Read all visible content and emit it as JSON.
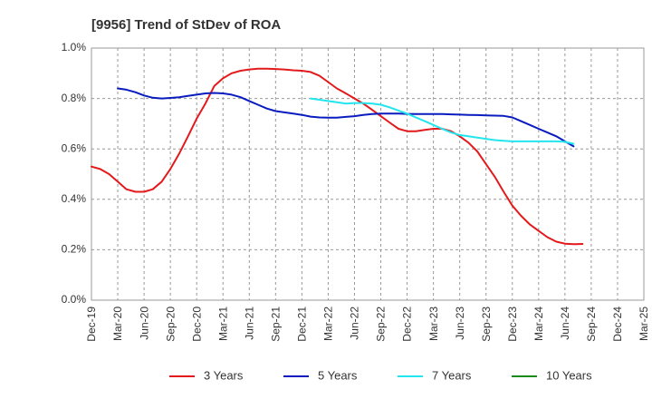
{
  "chart_data": {
    "type": "line",
    "title": "[9956]  Trend of StDev of ROA",
    "xlabel": "",
    "ylabel": "",
    "x_ticks": [
      "Dec-19",
      "Mar-20",
      "Jun-20",
      "Sep-20",
      "Dec-20",
      "Mar-21",
      "Jun-21",
      "Sep-21",
      "Dec-21",
      "Mar-22",
      "Jun-22",
      "Sep-22",
      "Dec-22",
      "Mar-23",
      "Jun-23",
      "Sep-23",
      "Dec-23",
      "Mar-24",
      "Jun-24",
      "Sep-24",
      "Dec-24",
      "Mar-25"
    ],
    "y_ticks": [
      "0.0%",
      "0.2%",
      "0.4%",
      "0.6%",
      "0.8%",
      "1.0%"
    ],
    "ylim": [
      0,
      1.0
    ],
    "y_unit": "%",
    "grid": "dashed",
    "legend_position": "bottom",
    "series": [
      {
        "name": "3 Years",
        "color": "#e31a1c",
        "points": [
          [
            0,
            0.53
          ],
          [
            0.33,
            0.52
          ],
          [
            0.67,
            0.5
          ],
          [
            1,
            0.47
          ],
          [
            1.33,
            0.44
          ],
          [
            1.67,
            0.43
          ],
          [
            2,
            0.43
          ],
          [
            2.33,
            0.44
          ],
          [
            2.67,
            0.47
          ],
          [
            3,
            0.52
          ],
          [
            3.33,
            0.58
          ],
          [
            3.67,
            0.65
          ],
          [
            4,
            0.72
          ],
          [
            4.33,
            0.78
          ],
          [
            4.67,
            0.85
          ],
          [
            5,
            0.88
          ],
          [
            5.33,
            0.9
          ],
          [
            5.67,
            0.91
          ],
          [
            6,
            0.915
          ],
          [
            6.33,
            0.918
          ],
          [
            6.67,
            0.918
          ],
          [
            7,
            0.917
          ],
          [
            7.33,
            0.915
          ],
          [
            7.67,
            0.912
          ],
          [
            8,
            0.91
          ],
          [
            8.33,
            0.905
          ],
          [
            8.67,
            0.89
          ],
          [
            9,
            0.865
          ],
          [
            9.33,
            0.84
          ],
          [
            9.67,
            0.82
          ],
          [
            10,
            0.8
          ],
          [
            10.33,
            0.78
          ],
          [
            10.67,
            0.755
          ],
          [
            11,
            0.73
          ],
          [
            11.33,
            0.705
          ],
          [
            11.67,
            0.68
          ],
          [
            12,
            0.67
          ],
          [
            12.33,
            0.67
          ],
          [
            12.67,
            0.675
          ],
          [
            13,
            0.68
          ],
          [
            13.33,
            0.68
          ],
          [
            13.67,
            0.67
          ],
          [
            14,
            0.65
          ],
          [
            14.33,
            0.625
          ],
          [
            14.67,
            0.59
          ],
          [
            15,
            0.54
          ],
          [
            15.33,
            0.49
          ],
          [
            15.67,
            0.43
          ],
          [
            16,
            0.375
          ],
          [
            16.33,
            0.335
          ],
          [
            16.67,
            0.3
          ],
          [
            17,
            0.275
          ],
          [
            17.33,
            0.25
          ],
          [
            17.67,
            0.232
          ],
          [
            18,
            0.224
          ],
          [
            18.33,
            0.222
          ],
          [
            18.67,
            0.223
          ]
        ]
      },
      {
        "name": "5 Years",
        "color": "#0a1cbf",
        "points": [
          [
            1,
            0.84
          ],
          [
            1.33,
            0.835
          ],
          [
            1.67,
            0.825
          ],
          [
            2,
            0.812
          ],
          [
            2.33,
            0.803
          ],
          [
            2.67,
            0.8
          ],
          [
            3,
            0.802
          ],
          [
            3.33,
            0.805
          ],
          [
            3.67,
            0.81
          ],
          [
            4,
            0.815
          ],
          [
            4.33,
            0.82
          ],
          [
            4.67,
            0.822
          ],
          [
            5,
            0.82
          ],
          [
            5.33,
            0.815
          ],
          [
            5.67,
            0.805
          ],
          [
            6,
            0.79
          ],
          [
            6.33,
            0.775
          ],
          [
            6.67,
            0.76
          ],
          [
            7,
            0.75
          ],
          [
            7.33,
            0.745
          ],
          [
            7.67,
            0.74
          ],
          [
            8,
            0.735
          ],
          [
            8.33,
            0.728
          ],
          [
            8.67,
            0.725
          ],
          [
            9,
            0.724
          ],
          [
            9.33,
            0.724
          ],
          [
            9.67,
            0.727
          ],
          [
            10,
            0.73
          ],
          [
            10.33,
            0.735
          ],
          [
            10.67,
            0.738
          ],
          [
            11,
            0.74
          ],
          [
            11.33,
            0.74
          ],
          [
            11.67,
            0.74
          ],
          [
            12,
            0.739
          ],
          [
            12.33,
            0.738
          ],
          [
            12.67,
            0.738
          ],
          [
            13,
            0.738
          ],
          [
            13.33,
            0.738
          ],
          [
            13.67,
            0.737
          ],
          [
            14,
            0.736
          ],
          [
            14.33,
            0.735
          ],
          [
            14.67,
            0.734
          ],
          [
            15,
            0.733
          ],
          [
            15.33,
            0.732
          ],
          [
            15.67,
            0.731
          ],
          [
            16,
            0.725
          ],
          [
            16.33,
            0.71
          ],
          [
            16.67,
            0.695
          ],
          [
            17,
            0.68
          ],
          [
            17.33,
            0.665
          ],
          [
            17.67,
            0.65
          ],
          [
            18,
            0.63
          ],
          [
            18.33,
            0.61
          ]
        ]
      },
      {
        "name": "7 Years",
        "color": "#22e5ee",
        "points": [
          [
            8.33,
            0.8
          ],
          [
            8.67,
            0.795
          ],
          [
            9,
            0.79
          ],
          [
            9.33,
            0.785
          ],
          [
            9.67,
            0.78
          ],
          [
            10,
            0.782
          ],
          [
            10.33,
            0.782
          ],
          [
            10.67,
            0.78
          ],
          [
            11,
            0.775
          ],
          [
            11.33,
            0.765
          ],
          [
            11.67,
            0.752
          ],
          [
            12,
            0.74
          ],
          [
            12.33,
            0.725
          ],
          [
            12.67,
            0.71
          ],
          [
            13,
            0.695
          ],
          [
            13.33,
            0.68
          ],
          [
            13.67,
            0.665
          ],
          [
            14,
            0.655
          ],
          [
            14.33,
            0.65
          ],
          [
            14.67,
            0.645
          ],
          [
            15,
            0.64
          ],
          [
            15.33,
            0.635
          ],
          [
            15.67,
            0.632
          ],
          [
            16,
            0.63
          ],
          [
            16.33,
            0.63
          ],
          [
            16.67,
            0.63
          ],
          [
            17,
            0.63
          ],
          [
            17.33,
            0.63
          ],
          [
            17.67,
            0.63
          ],
          [
            18,
            0.628
          ],
          [
            18.33,
            0.62
          ]
        ]
      },
      {
        "name": "10 Years",
        "color": "#1a8a1a",
        "points": []
      }
    ]
  }
}
